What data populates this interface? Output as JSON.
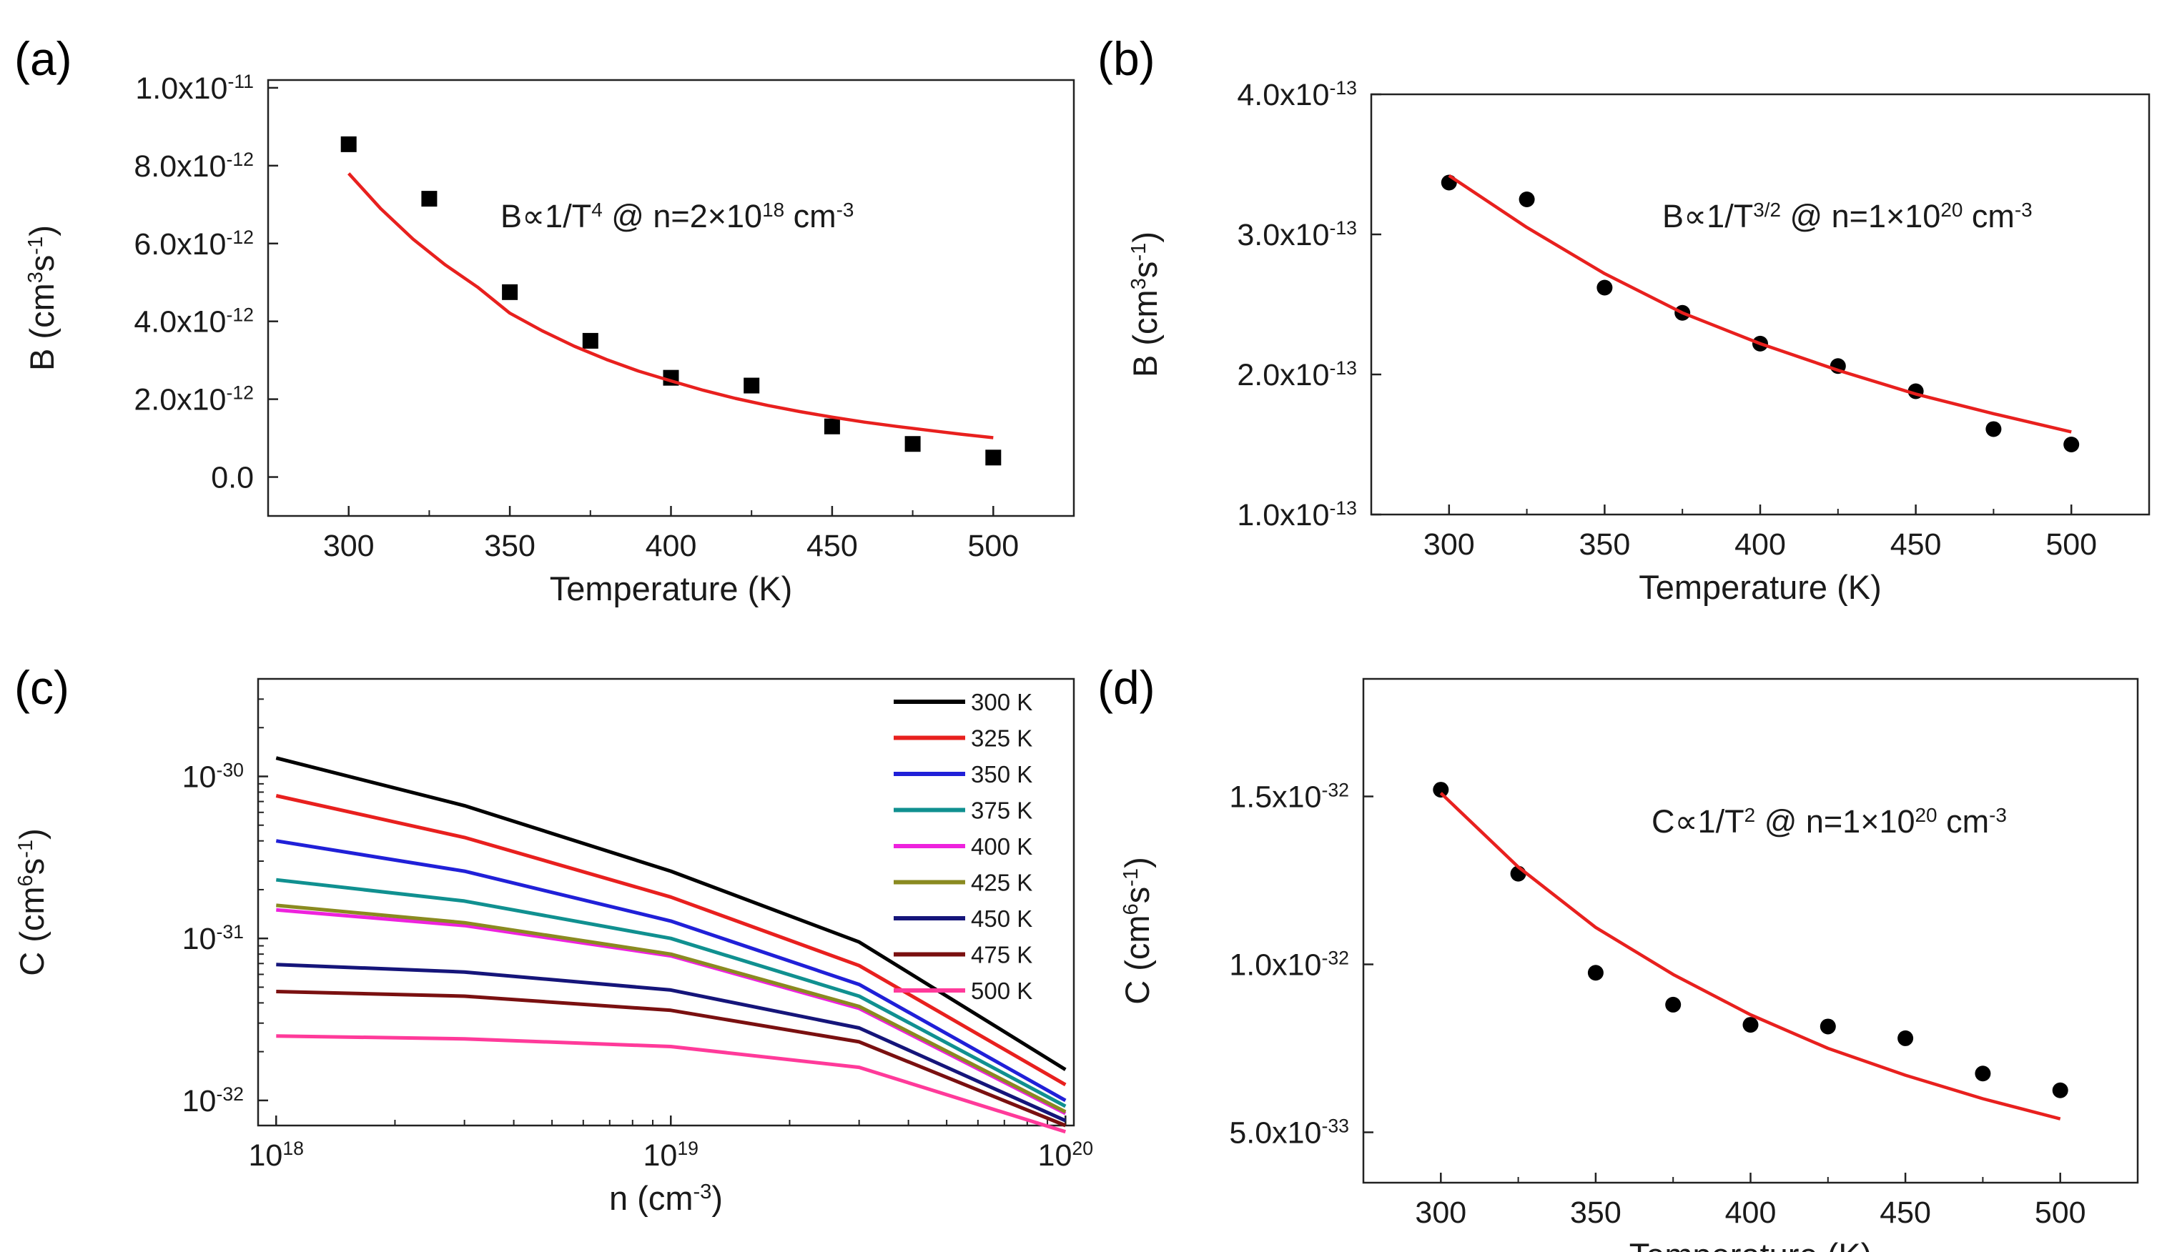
{
  "chart_data": [
    {
      "panel": "(a)",
      "type": "scatter",
      "xlabel": "Temperature (K)",
      "ylabel": {
        "base": "B (cm",
        "e1": "3",
        "mid": "s",
        "e2": "-1",
        "end": ")"
      },
      "xlim": [
        275,
        525
      ],
      "ylim": [
        -1e-12,
        1.02e-11
      ],
      "xticks": [
        300,
        350,
        400,
        450,
        500
      ],
      "xtick_labels": [
        "300",
        "350",
        "400",
        "450",
        "500"
      ],
      "yticks": [
        {
          "value": 0,
          "mant": "0.0",
          "exp": ""
        },
        {
          "value": 2e-12,
          "mant": "2.0x10",
          "exp": "-12"
        },
        {
          "value": 4e-12,
          "mant": "4.0x10",
          "exp": "-12"
        },
        {
          "value": 6e-12,
          "mant": "6.0x10",
          "exp": "-12"
        },
        {
          "value": 8e-12,
          "mant": "8.0x10",
          "exp": "-12"
        },
        {
          "value": 1e-11,
          "mant": "1.0x10",
          "exp": "-11"
        }
      ],
      "annotation": {
        "p1": "B∝1/T",
        "s1": "4",
        "p2": " @ n=2×10",
        "s2": "18",
        "p3": " cm",
        "s3": "-3"
      },
      "series": [
        {
          "name": "data",
          "kind": "points",
          "marker": "square",
          "color": "#000000",
          "x": [
            300,
            325,
            350,
            375,
            400,
            425,
            450,
            475,
            500
          ],
          "y": [
            8.55e-12,
            7.15e-12,
            4.75e-12,
            3.5e-12,
            2.55e-12,
            2.35e-12,
            1.3e-12,
            8.5e-13,
            5e-13
          ]
        },
        {
          "name": "fit",
          "kind": "line",
          "color": "#e8201e",
          "x": [
            300,
            310,
            320,
            330,
            340,
            350,
            360,
            370,
            380,
            390,
            400,
            410,
            420,
            430,
            440,
            450,
            460,
            470,
            480,
            490,
            500
          ],
          "y": [
            7.8e-12,
            6.89e-12,
            6.11e-12,
            5.45e-12,
            4.88e-12,
            4.21e-12,
            3.76e-12,
            3.36e-12,
            3.02e-12,
            2.72e-12,
            2.47e-12,
            2.23e-12,
            2.02e-12,
            1.84e-12,
            1.68e-12,
            1.54e-12,
            1.41e-12,
            1.3e-12,
            1.2e-12,
            1.1e-12,
            1.01e-12
          ]
        }
      ]
    },
    {
      "panel": "(b)",
      "type": "scatter",
      "xlabel": "Temperature (K)",
      "ylabel": {
        "base": "B (cm",
        "e1": "3",
        "mid": "s",
        "e2": "-1",
        "end": ")"
      },
      "xlim": [
        275,
        525
      ],
      "ylim": [
        1e-13,
        4e-13
      ],
      "xticks": [
        300,
        350,
        400,
        450,
        500
      ],
      "xtick_labels": [
        "300",
        "350",
        "400",
        "450",
        "500"
      ],
      "yticks": [
        {
          "value": 1e-13,
          "mant": "1.0x10",
          "exp": "-13"
        },
        {
          "value": 2e-13,
          "mant": "2.0x10",
          "exp": "-13"
        },
        {
          "value": 3e-13,
          "mant": "3.0x10",
          "exp": "-13"
        },
        {
          "value": 4e-13,
          "mant": "4.0x10",
          "exp": "-13"
        }
      ],
      "annotation": {
        "p1": "B∝1/T",
        "s1": "3/2",
        "p2": " @ n=1×10",
        "s2": "20",
        "p3": " cm",
        "s3": "-3"
      },
      "series": [
        {
          "name": "data",
          "kind": "points",
          "marker": "circle",
          "color": "#000000",
          "x": [
            300,
            325,
            350,
            375,
            400,
            425,
            450,
            475,
            500
          ],
          "y": [
            3.37e-13,
            3.25e-13,
            2.62e-13,
            2.44e-13,
            2.22e-13,
            2.06e-13,
            1.88e-13,
            1.61e-13,
            1.5e-13
          ]
        },
        {
          "name": "fit",
          "kind": "line",
          "color": "#e8201e",
          "x": [
            300,
            325,
            350,
            375,
            400,
            425,
            450,
            475,
            500
          ],
          "y": [
            3.42e-13,
            3.05e-13,
            2.72e-13,
            2.44e-13,
            2.22e-13,
            2.03e-13,
            1.86e-13,
            1.72e-13,
            1.59e-13
          ]
        }
      ]
    },
    {
      "panel": "(c)",
      "type": "line",
      "xscale": "log",
      "yscale": "log",
      "xlabel": {
        "base": "n (cm",
        "e1": "-3",
        "end": ")"
      },
      "ylabel": {
        "base": "C (cm",
        "e1": "6",
        "mid": "s",
        "e2": "-1",
        "end": ")"
      },
      "xlim": [
        9e+17,
        1.05e+20
      ],
      "ylim": [
        7e-33,
        4e-30
      ],
      "xticks": [
        {
          "value": 1e+18,
          "base": "10",
          "exp": "18"
        },
        {
          "value": 1e+19,
          "base": "10",
          "exp": "19"
        },
        {
          "value": 1e+20,
          "base": "10",
          "exp": "20"
        }
      ],
      "yticks": [
        {
          "value": 1e-32,
          "base": "10",
          "exp": "-32"
        },
        {
          "value": 1e-31,
          "base": "10",
          "exp": "-31"
        },
        {
          "value": 1e-30,
          "base": "10",
          "exp": "-30"
        }
      ],
      "legend_position": "top-right",
      "series": [
        {
          "name": "300 K",
          "color": "#000000",
          "x": [
            1e+18,
            3e+18,
            1e+19,
            3e+19,
            1e+20
          ],
          "y": [
            1.3e-30,
            6.6e-31,
            2.6e-31,
            9.5e-32,
            1.55e-32
          ]
        },
        {
          "name": "325 K",
          "color": "#e8201e",
          "x": [
            1e+18,
            3e+18,
            1e+19,
            3e+19,
            1e+20
          ],
          "y": [
            7.6e-31,
            4.2e-31,
            1.8e-31,
            6.8e-32,
            1.25e-32
          ]
        },
        {
          "name": "350 K",
          "color": "#2020d8",
          "x": [
            1e+18,
            3e+18,
            1e+19,
            3e+19,
            1e+20
          ],
          "y": [
            4e-31,
            2.6e-31,
            1.28e-31,
            5.2e-32,
            1e-32
          ]
        },
        {
          "name": "375 K",
          "color": "#109090",
          "x": [
            1e+18,
            3e+18,
            1e+19,
            3e+19,
            1e+20
          ],
          "y": [
            2.3e-31,
            1.7e-31,
            1e-31,
            4.4e-32,
            9.2e-33
          ]
        },
        {
          "name": "400 K",
          "color": "#ee22dd",
          "x": [
            1e+18,
            3e+18,
            1e+19,
            3e+19,
            1e+20
          ],
          "y": [
            1.5e-31,
            1.2e-31,
            7.8e-32,
            3.7e-32,
            8.3e-33
          ]
        },
        {
          "name": "425 K",
          "color": "#8a8a20",
          "x": [
            1e+18,
            3e+18,
            1e+19,
            3e+19,
            1e+20
          ],
          "y": [
            1.6e-31,
            1.25e-31,
            8e-32,
            3.8e-32,
            8.5e-33
          ]
        },
        {
          "name": "450 K",
          "color": "#15157a",
          "x": [
            1e+18,
            3e+18,
            1e+19,
            3e+19,
            1e+20
          ],
          "y": [
            6.9e-32,
            6.2e-32,
            4.8e-32,
            2.8e-32,
            7.5e-33
          ]
        },
        {
          "name": "475 K",
          "color": "#7a1010",
          "x": [
            1e+18,
            3e+18,
            1e+19,
            3e+19,
            1e+20
          ],
          "y": [
            4.7e-32,
            4.4e-32,
            3.6e-32,
            2.3e-32,
            7e-33
          ]
        },
        {
          "name": "500 K",
          "color": "#ff3a9a",
          "x": [
            1e+18,
            3e+18,
            1e+19,
            3e+19,
            1e+20
          ],
          "y": [
            2.5e-32,
            2.4e-32,
            2.15e-32,
            1.6e-32,
            6.4e-33
          ]
        }
      ]
    },
    {
      "panel": "(d)",
      "type": "scatter",
      "xlabel": "Temperature (K)",
      "ylabel": {
        "base": "C (cm",
        "e1": "6",
        "mid": "s",
        "e2": "-1",
        "end": ")"
      },
      "xlim": [
        275,
        525
      ],
      "ylim": [
        3.5e-33,
        1.85e-32
      ],
      "xticks": [
        300,
        350,
        400,
        450,
        500
      ],
      "xtick_labels": [
        "300",
        "350",
        "400",
        "450",
        "500"
      ],
      "yticks": [
        {
          "value": 5e-33,
          "mant": "5.0x10",
          "exp": "-33"
        },
        {
          "value": 1e-32,
          "mant": "1.0x10",
          "exp": "-32"
        },
        {
          "value": 1.5e-32,
          "mant": "1.5x10",
          "exp": "-32"
        }
      ],
      "annotation": {
        "p1": "C∝1/T",
        "s1": "2",
        "p2": " @ n=1×10",
        "s2": "20",
        "p3": " cm",
        "s3": "-3"
      },
      "series": [
        {
          "name": "data",
          "kind": "points",
          "marker": "circle",
          "color": "#000000",
          "x": [
            300,
            325,
            350,
            375,
            400,
            425,
            450,
            475,
            500
          ],
          "y": [
            1.52e-32,
            1.27e-32,
            9.75e-33,
            8.8e-33,
            8.2e-33,
            8.15e-33,
            7.8e-33,
            6.75e-33,
            6.25e-33
          ]
        },
        {
          "name": "fit",
          "kind": "line",
          "color": "#e8201e",
          "x": [
            300,
            325,
            350,
            375,
            400,
            425,
            450,
            475,
            500
          ],
          "y": [
            1.51e-32,
            1.29e-32,
            1.11e-32,
            9.7e-33,
            8.5e-33,
            7.5e-33,
            6.7e-33,
            6e-33,
            5.4e-33
          ]
        }
      ]
    }
  ]
}
